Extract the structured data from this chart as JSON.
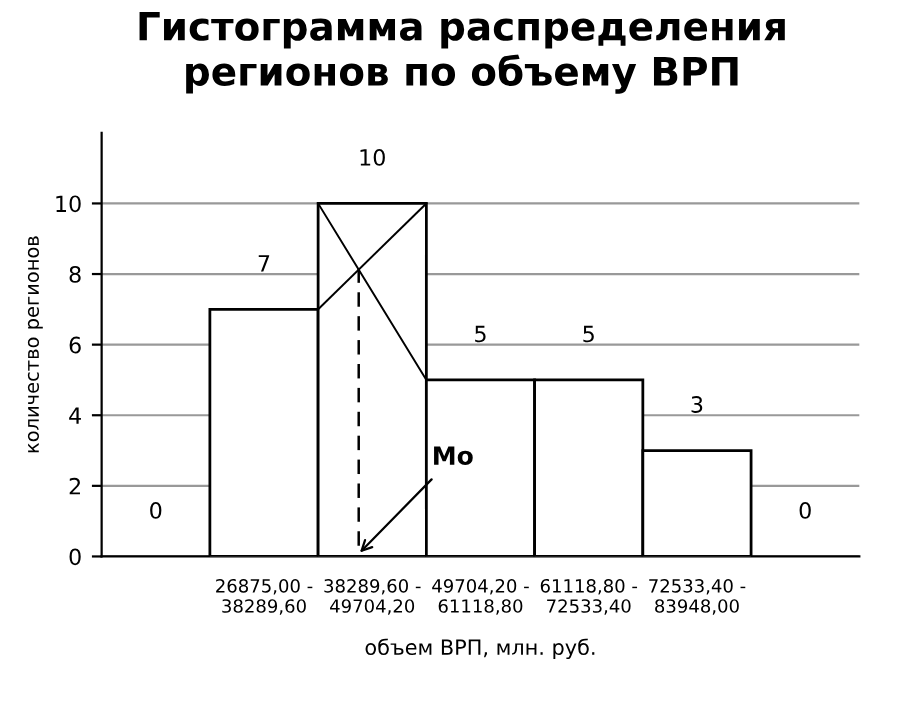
{
  "chart_data": {
    "type": "bar",
    "title": "Гистограмма распределения\nрегионов по объему ВРП",
    "xlabel": "объем ВРП, млн. руб.",
    "ylabel": "количество регионов",
    "categories": [
      null,
      "26875,00 -\n38289,60",
      "38289,60 -\n49704,20",
      "49704,20 -\n61118,80",
      "61118,80 -\n72533,40",
      "72533,40 -\n83948,00",
      null
    ],
    "values": [
      0,
      7,
      10,
      5,
      5,
      3,
      0
    ],
    "color": "#ffffff",
    "ylim": [
      0,
      12
    ],
    "yticks": [
      0,
      2,
      4,
      6,
      8,
      10
    ],
    "grid": "y",
    "data_labels": true,
    "annotations": [
      {
        "text": "Mo",
        "x": "38289,60 -\n49704,20",
        "y": 0
      }
    ]
  }
}
